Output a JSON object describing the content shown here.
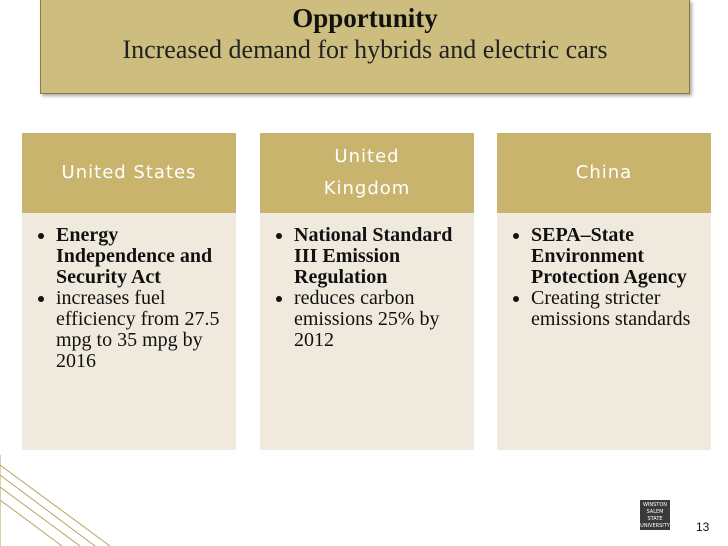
{
  "header": {
    "title": "Opportunity",
    "subtitle": "Increased demand for hybrids and electric cars"
  },
  "columns": [
    {
      "heading": "United States",
      "bullets": [
        "Energy Independence and Security Act",
        "increases fuel efficiency from 27.5 mpg to 35 mpg by 2016"
      ]
    },
    {
      "heading": "United Kingdom",
      "bullets": [
        "National Standard III Emission Regulation",
        "reduces carbon emissions 25% by 2012"
      ]
    },
    {
      "heading": "China",
      "bullets": [
        "SEPA–State Environment Protection Agency",
        "Creating stricter emissions standards"
      ]
    }
  ],
  "logo": [
    "WINSTON",
    "SALEM",
    "STATE",
    "UNIVERSITY"
  ],
  "page_number": "13"
}
